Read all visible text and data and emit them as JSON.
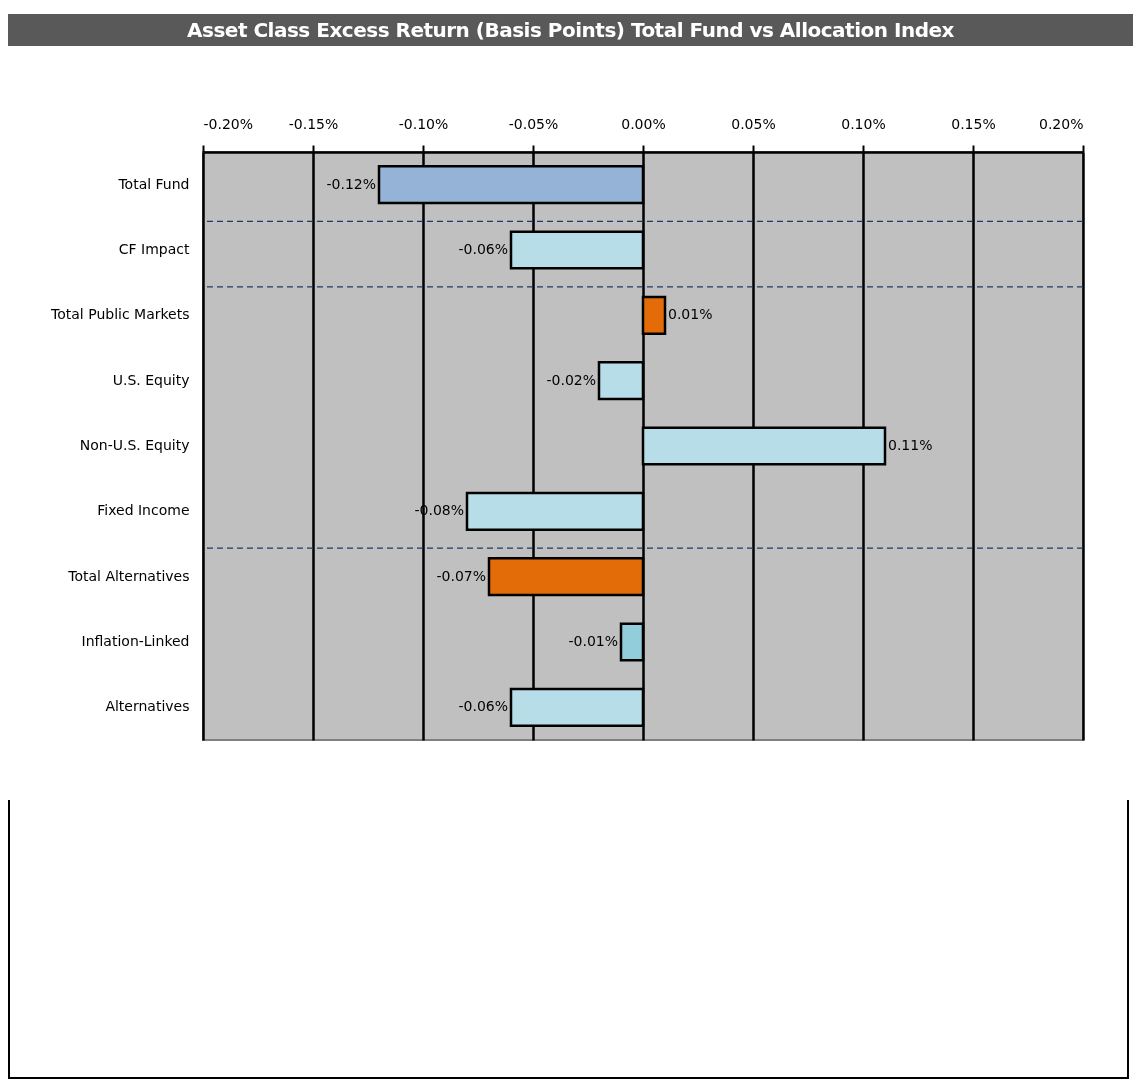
{
  "chart_data": {
    "type": "bar",
    "title": "Asset Class Excess Return (Basis Points) Total Fund vs Allocation Index",
    "orientation": "horizontal",
    "categories": [
      "Total Fund",
      "CF Impact",
      "Total Public Markets",
      "U.S. Equity",
      "Non-U.S. Equity",
      "Fixed Income",
      "Total Alternatives",
      "Inflation-Linked",
      "Alternatives"
    ],
    "values": [
      -0.12,
      -0.06,
      0.01,
      -0.02,
      0.11,
      -0.08,
      -0.07,
      -0.01,
      -0.06
    ],
    "colors": [
      "#95b3d7",
      "#b7dee8",
      "#e36c09",
      "#b7dee8",
      "#b7dee8",
      "#b7dee8",
      "#e36c09",
      "#92cddc",
      "#b7dee8"
    ],
    "value_labels": [
      "-0.12%",
      "-0.06%",
      "0.01%",
      "-0.02%",
      "0.11%",
      "-0.08%",
      "-0.07%",
      "-0.01%",
      "-0.06%"
    ],
    "xlim": [
      -0.2,
      0.2
    ],
    "xticks": [
      {
        "value": -0.2,
        "label": "-0.20%"
      },
      {
        "value": -0.15,
        "label": "-0.15%"
      },
      {
        "value": -0.1,
        "label": "-0.10%"
      },
      {
        "value": -0.05,
        "label": "-0.05%"
      },
      {
        "value": 0,
        "label": "0.00%"
      },
      {
        "value": 0.05,
        "label": "0.05%"
      },
      {
        "value": 0.1,
        "label": "0.10%"
      },
      {
        "value": 0.15,
        "label": "0.15%"
      },
      {
        "value": 0.2,
        "label": "0.20%"
      }
    ],
    "grid": "x",
    "ref_lines": [
      {
        "axis": "y",
        "value": "CF Impact",
        "color": "#1f3864",
        "line_style": "dashed"
      },
      {
        "axis": "y",
        "value": "Total Public Markets",
        "color": "#1f3864",
        "line_style": "dashed"
      },
      {
        "axis": "y",
        "value": "Total Alternatives",
        "color": "#1f3864",
        "line_style": "dashed"
      }
    ]
  }
}
